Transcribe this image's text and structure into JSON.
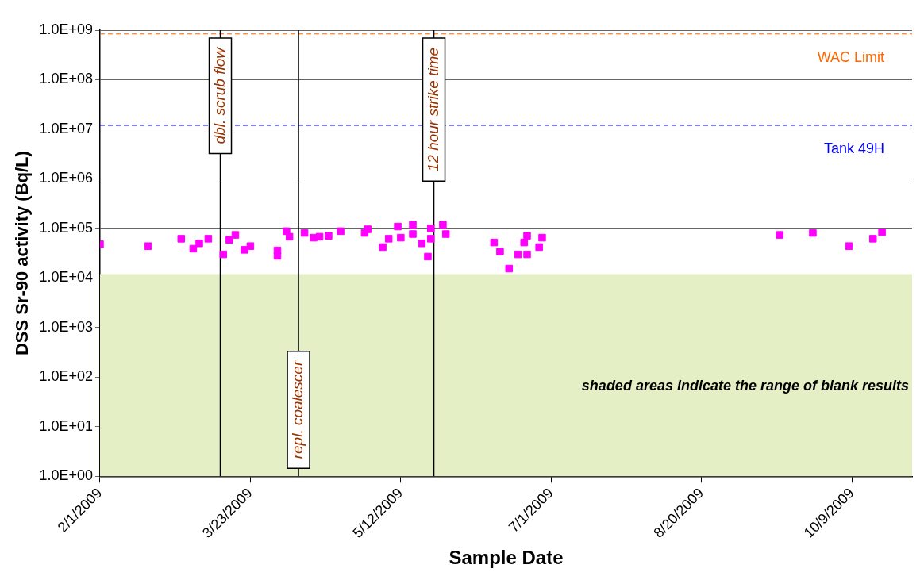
{
  "chart_data": {
    "type": "scatter",
    "xlabel": "Sample Date",
    "ylabel": "DSS Sr-90 activity (Bq/L)",
    "x": [
      "2009-02-01",
      "2009-02-17",
      "2009-02-28",
      "2009-03-04",
      "2009-03-06",
      "2009-03-09",
      "2009-03-14",
      "2009-03-16",
      "2009-03-18",
      "2009-03-21",
      "2009-03-23",
      "2009-04-01",
      "2009-04-01",
      "2009-04-04",
      "2009-04-05",
      "2009-04-10",
      "2009-04-13",
      "2009-04-15",
      "2009-04-18",
      "2009-04-22",
      "2009-04-30",
      "2009-05-01",
      "2009-05-06",
      "2009-05-08",
      "2009-05-11",
      "2009-05-12",
      "2009-05-16",
      "2009-05-16",
      "2009-05-19",
      "2009-05-21",
      "2009-05-22",
      "2009-05-22",
      "2009-05-26",
      "2009-05-27",
      "2009-06-12",
      "2009-06-14",
      "2009-06-17",
      "2009-06-20",
      "2009-06-22",
      "2009-06-23",
      "2009-06-23",
      "2009-06-27",
      "2009-06-28",
      "2009-09-15",
      "2009-09-26",
      "2009-10-08",
      "2009-10-16",
      "2009-10-19"
    ],
    "series": [
      {
        "color": "#ff00ff",
        "values": [
          48000,
          44000,
          62000,
          39000,
          50000,
          62000,
          30000,
          59000,
          74000,
          37000,
          44000,
          36000,
          28000,
          88000,
          68000,
          81000,
          65000,
          68000,
          71000,
          88000,
          81000,
          96000,
          42000,
          62000,
          109000,
          65000,
          119000,
          77000,
          50000,
          27000,
          100000,
          62000,
          119000,
          77000,
          52000,
          34000,
          15500,
          30000,
          52000,
          30000,
          71000,
          42000,
          65000,
          74000,
          81000,
          44000,
          62000,
          84000
        ]
      }
    ],
    "marker": "square",
    "log": "y",
    "xlim": [
      "2009-02-01",
      "2009-10-29"
    ],
    "xticks": [
      {
        "value": "2009-02-01",
        "label": "2/1/2009"
      },
      {
        "value": "2009-03-23",
        "label": "3/23/2009"
      },
      {
        "value": "2009-05-12",
        "label": "5/12/2009"
      },
      {
        "value": "2009-07-01",
        "label": "7/1/2009"
      },
      {
        "value": "2009-08-20",
        "label": "8/20/2009"
      },
      {
        "value": "2009-10-09",
        "label": "10/9/2009"
      }
    ],
    "ylim": [
      1,
      1000000000
    ],
    "yticks": [
      {
        "value": 1,
        "label": "1.0E+00"
      },
      {
        "value": 10,
        "label": "1.0E+01"
      },
      {
        "value": 100,
        "label": "1.0E+02"
      },
      {
        "value": 1000,
        "label": "1.0E+03"
      },
      {
        "value": 10000,
        "label": "1.0E+04"
      },
      {
        "value": 100000,
        "label": "1.0E+05"
      },
      {
        "value": 1000000,
        "label": "1.0E+06"
      },
      {
        "value": 10000000,
        "label": "1.0E+07"
      },
      {
        "value": 100000000,
        "label": "1.0E+08"
      },
      {
        "value": 1000000000,
        "label": "1.0E+09"
      }
    ],
    "grid": "y",
    "legend": false,
    "ref_lines": [
      {
        "axis": "y",
        "value": 840000000,
        "label": "WAC Limit",
        "color": "#ff6600",
        "line_style": "dashed"
      },
      {
        "axis": "y",
        "value": 12000000,
        "label": "Tank 49H",
        "color": "#0000ff",
        "line_style": "dashed"
      },
      {
        "axis": "x",
        "value": "2009-03-13",
        "label": "dbl. scrub flow",
        "color": "#000000",
        "line_style": "solid"
      },
      {
        "axis": "x",
        "value": "2009-04-08",
        "label": "repl. coalescer",
        "color": "#000000",
        "line_style": "solid"
      },
      {
        "axis": "x",
        "value": "2009-05-23",
        "label": "12 hour strike time",
        "color": "#000000",
        "line_style": "solid"
      }
    ],
    "bands": [
      {
        "axis": "y",
        "from": 1,
        "to": 12000,
        "label": "shaded areas indicate the range of blank results",
        "color": "#e4efc6"
      }
    ]
  }
}
